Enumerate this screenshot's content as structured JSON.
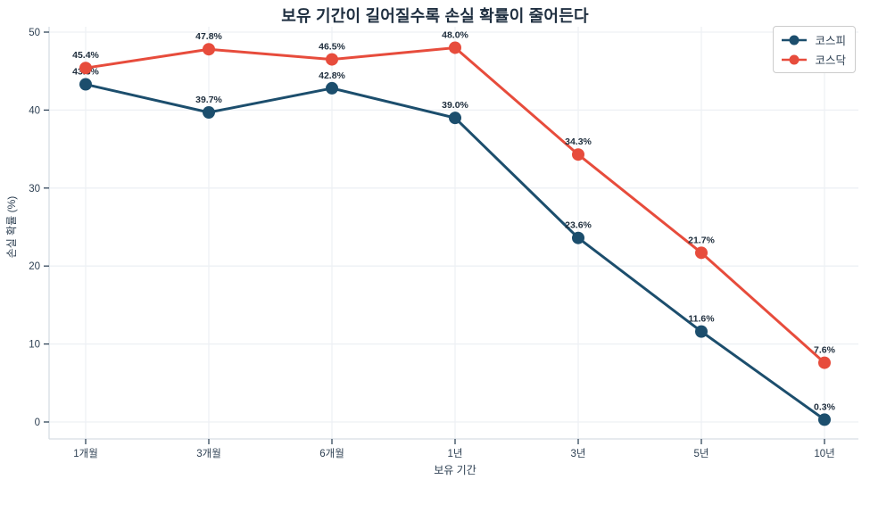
{
  "chart_data": {
    "type": "line",
    "title": "보유 기간이 길어질수록 손실 확률이 줄어든다",
    "xlabel": "보유 기간",
    "ylabel": "손실 확률 (%)",
    "categories": [
      "1개월",
      "3개월",
      "6개월",
      "1년",
      "3년",
      "5년",
      "10년"
    ],
    "series": [
      {
        "id": "kospi",
        "name": "코스피",
        "color": "#1c4e6d",
        "values": [
          43.3,
          39.7,
          42.8,
          39.0,
          23.6,
          11.6,
          0.3
        ]
      },
      {
        "id": "kosdaq",
        "name": "코스닥",
        "color": "#e74c3c",
        "values": [
          45.4,
          47.8,
          46.5,
          48.0,
          34.3,
          21.7,
          7.6
        ]
      }
    ],
    "ylim": [
      0,
      50
    ],
    "yticks": [
      0,
      10,
      20,
      30,
      40,
      50
    ],
    "grid": true,
    "legend_position": "upper right",
    "data_label_suffix": "%",
    "data_label_decimals": 1
  },
  "style": {
    "background": "#ffffff",
    "title_color": "#1f2f40",
    "tick_color": "#2e4053",
    "grid_color": "#edf0f4",
    "spine_color": "#d6dde3",
    "tick_mark_color": "#33475b",
    "data_label_color": "#1e2d3c",
    "legend_border_color": "#cccccc"
  }
}
